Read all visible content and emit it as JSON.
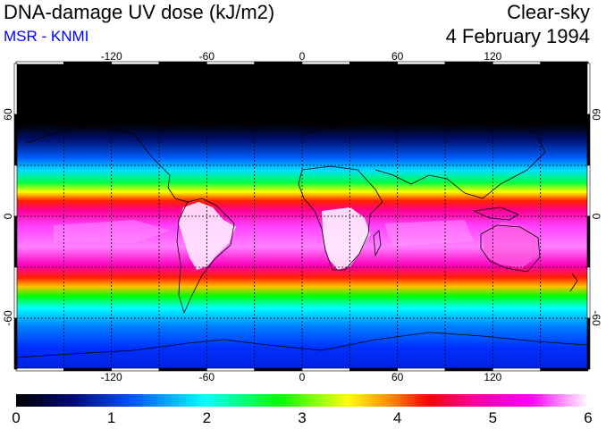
{
  "header": {
    "title": "DNA-damage UV dose (kJ/m2)",
    "source": "MSR - KNMI",
    "condition": "Clear-sky",
    "date": "4 February 1994"
  },
  "colors": {
    "source": "#0000ff",
    "coastline": "#000000",
    "frame": "#000000"
  },
  "map": {
    "projection": "equirectangular",
    "lon_range": [
      -180,
      180
    ],
    "lat_range": [
      -90,
      90
    ],
    "lon_ticks": [
      "-120",
      "-60",
      "0",
      "60",
      "120"
    ],
    "lat_ticks": [
      "60",
      "0",
      "-60"
    ],
    "lon_tick_values": [
      -120,
      -60,
      0,
      60,
      120
    ],
    "lat_tick_values": [
      60,
      0,
      -60
    ],
    "grid_lons": [
      -150,
      -120,
      -90,
      -60,
      -30,
      0,
      30,
      60,
      90,
      120,
      150
    ],
    "grid_lats": [
      60,
      30,
      0,
      -30,
      -60
    ]
  },
  "colorbar": {
    "min": 0,
    "max": 6,
    "labels": [
      "0",
      "1",
      "2",
      "3",
      "4",
      "5",
      "6"
    ],
    "stops": [
      "#000000",
      "#000a78",
      "#0050ff",
      "#00ffff",
      "#00ff00",
      "#ffff00",
      "#ff8000",
      "#ff0000",
      "#ff00a0",
      "#ff00ff",
      "#ffffff"
    ]
  }
}
